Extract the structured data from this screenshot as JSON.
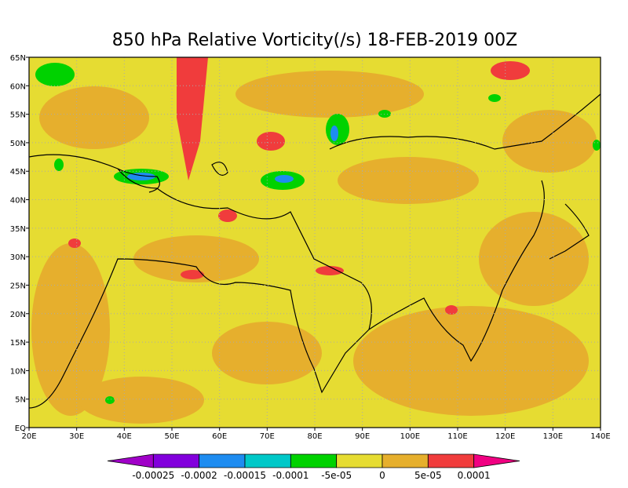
{
  "title": "850 hPa Relative Vorticity(/s) 18-FEB-2019 00Z",
  "map": {
    "lon_labels": [
      "20E",
      "30E",
      "40E",
      "50E",
      "60E",
      "70E",
      "80E",
      "90E",
      "100E",
      "110E",
      "120E",
      "130E",
      "140E"
    ],
    "lat_labels": [
      "EQ",
      "5N",
      "10N",
      "15N",
      "20N",
      "25N",
      "30N",
      "35N",
      "40N",
      "45N",
      "50N",
      "55N",
      "60N",
      "65N"
    ]
  },
  "colorbar": {
    "labels": [
      "-0.00025",
      "-0.0002",
      "-0.00015",
      "-0.0001",
      "-5e-05",
      "0",
      "5e-05",
      "0.0001"
    ],
    "colors": [
      "#a000c8",
      "#8200dc",
      "#1e8cf0",
      "#00c8c8",
      "#00d200",
      "#e6dc32",
      "#e6af2d",
      "#f03c3c",
      "#f00082"
    ]
  }
}
